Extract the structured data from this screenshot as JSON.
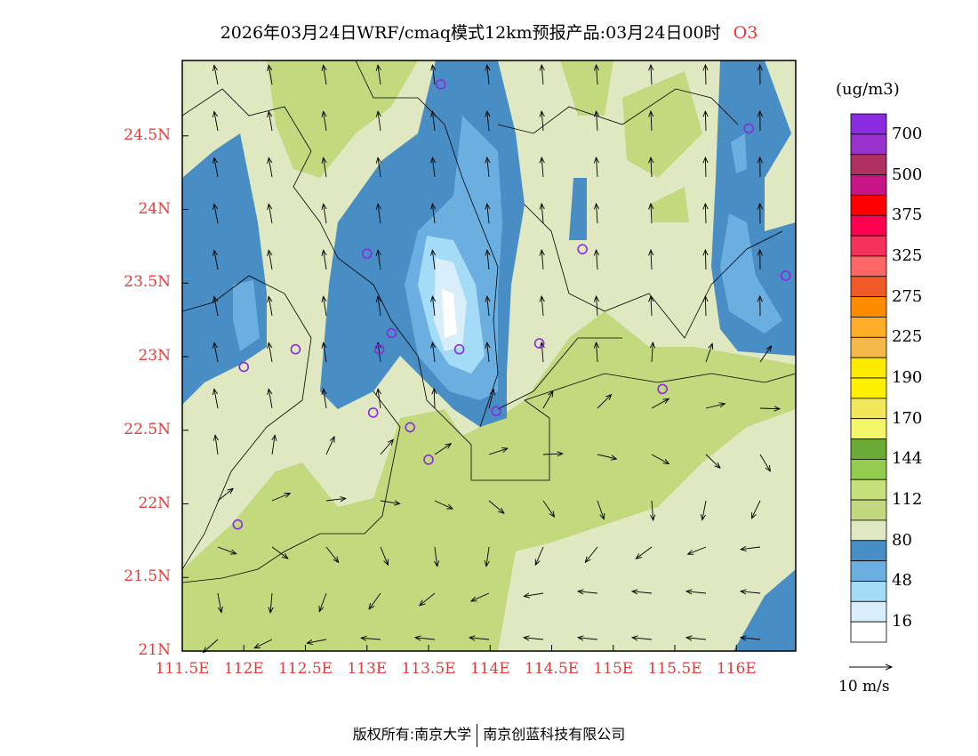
{
  "title": {
    "text": "2026年03月24日WRF/cmaq模式12km预报产品:03月24日00时",
    "species": "O3"
  },
  "axes": {
    "lat_labels": [
      "24.5N",
      "24N",
      "23.5N",
      "23N",
      "22.5N",
      "22N",
      "21.5N",
      "21N"
    ],
    "lat_values": [
      24.5,
      24,
      23.5,
      23,
      22.5,
      22,
      21.5,
      21
    ],
    "lon_labels": [
      "111.5E",
      "112E",
      "112.5E",
      "113E",
      "113.5E",
      "114E",
      "114.5E",
      "115E",
      "115.5E",
      "116E"
    ],
    "lon_values": [
      111.5,
      112,
      112.5,
      113,
      113.5,
      114,
      114.5,
      115,
      115.5,
      116
    ]
  },
  "legend": {
    "unit": "(ug/m3)",
    "colors": [
      "#8a2be2",
      "#9932cc",
      "#b03060",
      "#c71585",
      "#ff0000",
      "#ff0050",
      "#f5325a",
      "#ff6666",
      "#f05a28",
      "#ff8c00",
      "#ffae2a",
      "#f5b84a",
      "#ffea00",
      "#fff000",
      "#f2e65a",
      "#f4f76a",
      "#6aaa35",
      "#92cd50",
      "#c6e07c",
      "#c2d77e",
      "#dfe8c0",
      "#488dc3",
      "#6aafdf",
      "#a4dbf6",
      "#d8eefa",
      "#ffffff"
    ],
    "labels": [
      "700",
      "500",
      "375",
      "325",
      "275",
      "225",
      "190",
      "170",
      "144",
      "112",
      "80",
      "48",
      "16"
    ]
  },
  "wind_scale": "10 m/s",
  "footer": {
    "left": "版权所有:南京大学",
    "right": "南京创蓝科技有限公司"
  },
  "colors": {
    "pale": "#dfe8c0",
    "olive": "#c2d97e",
    "blue": "#488dc3",
    "mid": "#6aafdf",
    "light": "#a4dbf6",
    "vlight": "#d8eefa",
    "site": "#8a2be2"
  },
  "sites": [
    [
      113.6,
      24.85
    ],
    [
      116.1,
      24.55
    ],
    [
      113.0,
      23.7
    ],
    [
      114.75,
      23.73
    ],
    [
      116.4,
      23.55
    ],
    [
      112.0,
      22.93
    ],
    [
      112.42,
      23.05
    ],
    [
      113.2,
      23.16
    ],
    [
      113.1,
      23.05
    ],
    [
      113.75,
      23.05
    ],
    [
      114.4,
      23.09
    ],
    [
      115.4,
      22.78
    ],
    [
      113.05,
      22.62
    ],
    [
      113.35,
      22.52
    ],
    [
      114.05,
      22.63
    ],
    [
      113.5,
      22.3
    ],
    [
      111.95,
      21.86
    ]
  ]
}
